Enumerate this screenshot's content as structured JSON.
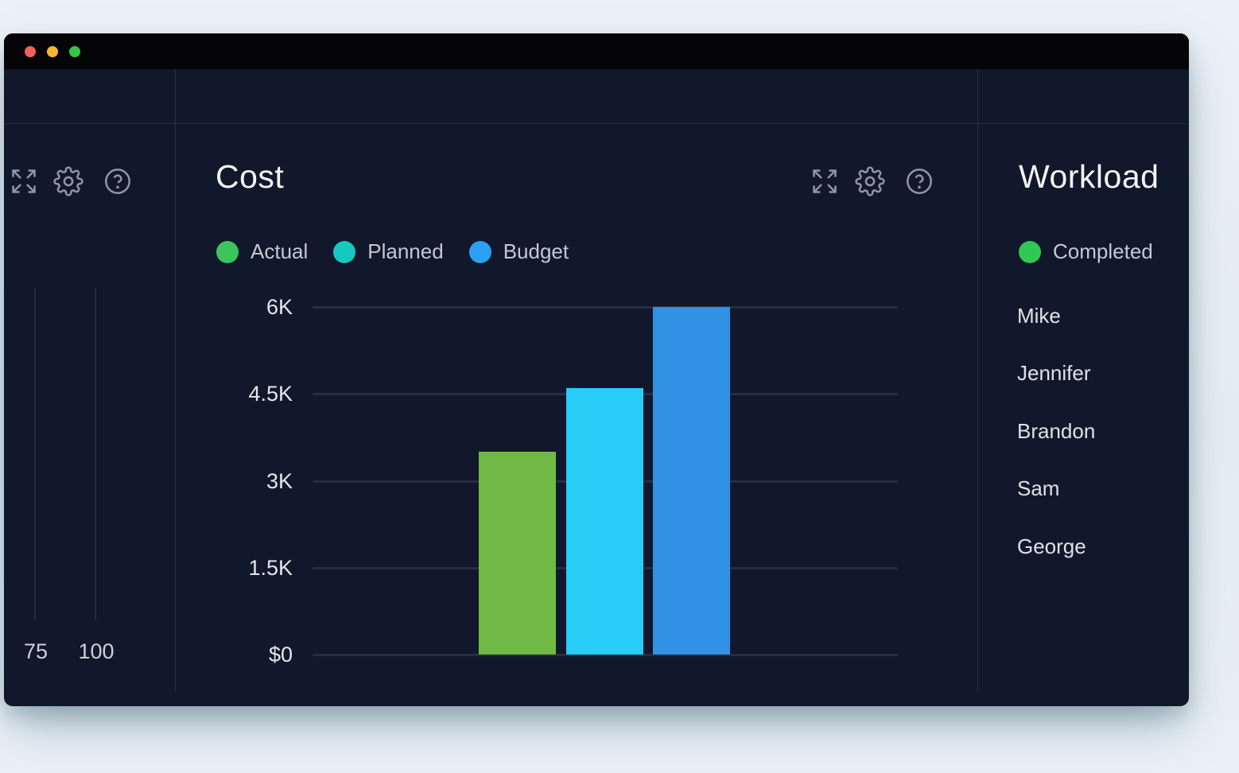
{
  "window": {
    "titlebar_buttons": [
      {
        "name": "close",
        "color": "#f3605a"
      },
      {
        "name": "minimize",
        "color": "#f7b62e"
      },
      {
        "name": "zoom",
        "color": "#34c546"
      }
    ]
  },
  "left_widget": {
    "toolbar_icons": [
      "expand",
      "settings",
      "help"
    ],
    "x_axis_ticks": [
      "75",
      "100"
    ]
  },
  "cost_widget": {
    "title": "Cost",
    "toolbar_icons": [
      "expand",
      "settings",
      "help"
    ],
    "legend": [
      {
        "label": "Actual",
        "color": "#3cc55c"
      },
      {
        "label": "Planned",
        "color": "#15c8c0"
      },
      {
        "label": "Budget",
        "color": "#2b9ff2"
      }
    ],
    "chart_data": {
      "type": "bar",
      "title": "Cost",
      "categories": [
        "Actual",
        "Planned",
        "Budget"
      ],
      "values": [
        3500,
        4600,
        6000
      ],
      "bar_colors": [
        "#6fb944",
        "#27ccf7",
        "#3191e4"
      ],
      "y_ticks": [
        {
          "label": "6K",
          "value": 6000
        },
        {
          "label": "4.5K",
          "value": 4500
        },
        {
          "label": "3K",
          "value": 3000
        },
        {
          "label": "1.5K",
          "value": 1500
        },
        {
          "label": "$0",
          "value": 0
        }
      ],
      "ylim": [
        0,
        6000
      ],
      "grid": true,
      "legend_position": "top"
    }
  },
  "workload_widget": {
    "title": "Workload",
    "legend": [
      {
        "label": "Completed",
        "color": "#2fc852"
      }
    ],
    "members": [
      "Mike",
      "Jennifer",
      "Brandon",
      "Sam",
      "George"
    ]
  }
}
